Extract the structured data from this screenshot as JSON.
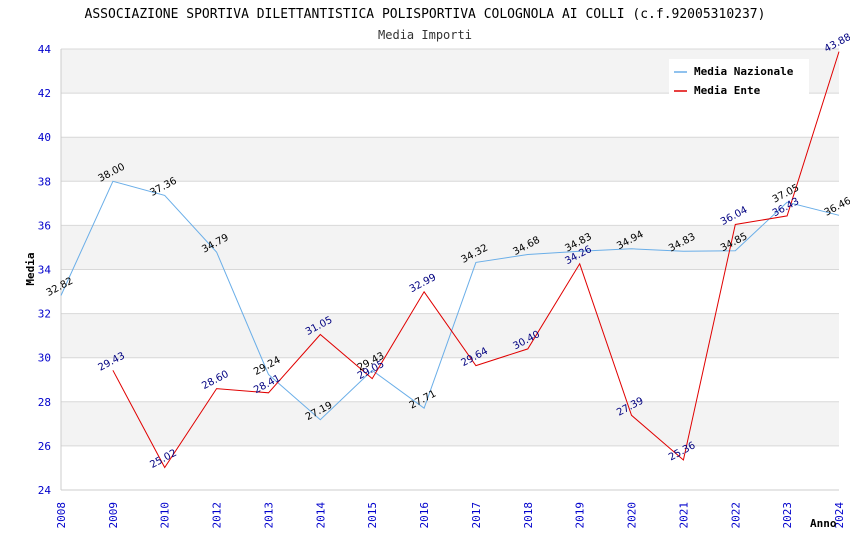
{
  "chart_data": {
    "type": "line",
    "title": "ASSOCIAZIONE SPORTIVA DILETTANTISTICA POLISPORTIVA COLOGNOLA AI COLLI (c.f.92005310237)",
    "subtitle": "Media Importi",
    "xlabel": "Anno",
    "ylabel": "Media",
    "ylim": [
      24,
      44
    ],
    "yticks": [
      "24",
      "26",
      "28",
      "30",
      "32",
      "34",
      "36",
      "38",
      "40",
      "42",
      "44"
    ],
    "categories": [
      "2008",
      "2009",
      "2010",
      "2012",
      "2013",
      "2014",
      "2015",
      "2016",
      "2017",
      "2018",
      "2019",
      "2020",
      "2021",
      "2022",
      "2023",
      "2024"
    ],
    "legend_position": "top-right",
    "series": [
      {
        "name": "Media Nazionale",
        "color": "#6aaee8",
        "label_color": "#000000",
        "values": [
          32.82,
          38.0,
          37.36,
          34.79,
          29.24,
          27.19,
          29.43,
          27.71,
          34.32,
          34.68,
          34.83,
          34.94,
          34.83,
          34.85,
          37.05,
          36.46
        ],
        "labels": [
          "32.82",
          "38.00",
          "37.36",
          "34.79",
          "29.24",
          "27.19",
          "29.43",
          "27.71",
          "34.32",
          "34.68",
          "34.83",
          "34.94",
          "34.83",
          "34.85",
          "37.05",
          "36.46"
        ]
      },
      {
        "name": "Media Ente",
        "color": "#e00000",
        "label_color": "#000080",
        "values": [
          null,
          29.43,
          25.02,
          28.6,
          28.41,
          31.05,
          29.05,
          32.99,
          29.64,
          30.4,
          34.26,
          27.39,
          25.36,
          36.04,
          36.43,
          43.88
        ],
        "labels": [
          null,
          "29.43",
          "25.02",
          "28.60",
          "28.41",
          "31.05",
          "29.05",
          "32.99",
          "29.64",
          "30.40",
          "34.26",
          "27.39",
          "25.36",
          "36.04",
          "36.43",
          "43.88"
        ]
      }
    ]
  }
}
